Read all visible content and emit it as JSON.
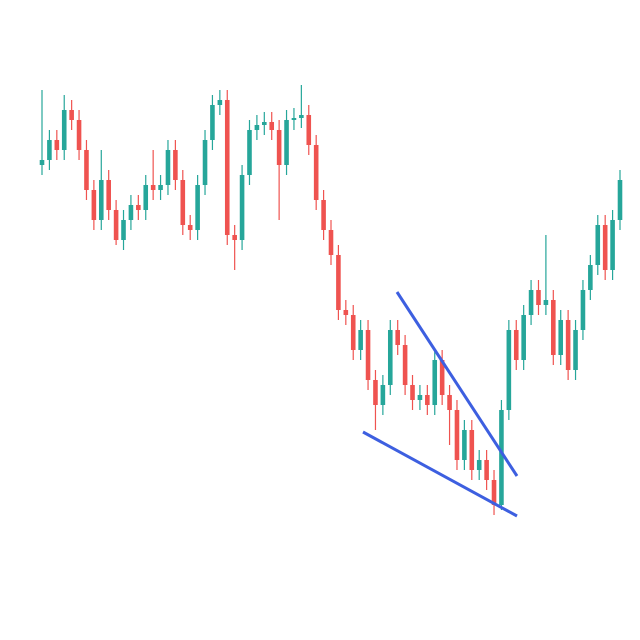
{
  "chart_data": {
    "type": "candlestick",
    "up_color": "#26a69a",
    "down_color": "#ef5350",
    "ylim": [
      0,
      640
    ],
    "open": [
      475,
      480,
      500,
      490,
      530,
      520,
      490,
      450,
      420,
      460,
      430,
      400,
      420,
      435,
      430,
      455,
      450,
      455,
      490,
      460,
      415,
      410,
      455,
      500,
      535,
      540,
      405,
      400,
      465,
      510,
      515,
      518,
      510,
      475,
      520,
      522,
      525,
      495,
      440,
      410,
      385,
      330,
      325,
      290,
      310,
      260,
      235,
      255,
      310,
      295,
      255,
      240,
      245,
      235,
      280,
      245,
      230,
      180,
      210,
      170,
      180,
      160,
      135,
      230,
      310,
      280,
      325,
      350,
      335,
      340,
      285,
      320,
      270,
      310,
      350,
      375,
      415,
      370,
      420
    ],
    "high": [
      550,
      510,
      510,
      545,
      540,
      530,
      500,
      460,
      490,
      470,
      440,
      430,
      445,
      445,
      465,
      490,
      465,
      500,
      500,
      470,
      425,
      465,
      510,
      545,
      550,
      550,
      415,
      475,
      520,
      525,
      528,
      528,
      520,
      530,
      532,
      555,
      535,
      505,
      450,
      420,
      395,
      340,
      335,
      320,
      320,
      270,
      265,
      320,
      320,
      305,
      265,
      255,
      255,
      290,
      290,
      255,
      240,
      220,
      220,
      190,
      190,
      170,
      240,
      320,
      320,
      335,
      360,
      360,
      405,
      350,
      330,
      330,
      320,
      360,
      385,
      425,
      425,
      430,
      470
    ],
    "low": [
      465,
      470,
      480,
      480,
      510,
      480,
      440,
      410,
      410,
      420,
      395,
      390,
      410,
      420,
      420,
      440,
      440,
      445,
      450,
      405,
      400,
      400,
      445,
      490,
      525,
      395,
      370,
      390,
      455,
      500,
      505,
      500,
      420,
      465,
      510,
      512,
      485,
      430,
      400,
      375,
      320,
      315,
      280,
      280,
      250,
      210,
      225,
      245,
      285,
      245,
      230,
      230,
      225,
      225,
      235,
      195,
      170,
      170,
      160,
      160,
      150,
      125,
      130,
      220,
      270,
      270,
      315,
      325,
      325,
      275,
      275,
      260,
      260,
      300,
      340,
      365,
      360,
      360,
      410
    ],
    "close": [
      480,
      500,
      490,
      530,
      520,
      490,
      450,
      420,
      460,
      430,
      400,
      420,
      435,
      430,
      455,
      450,
      455,
      490,
      460,
      415,
      410,
      455,
      500,
      535,
      540,
      405,
      400,
      465,
      510,
      515,
      518,
      510,
      475,
      520,
      522,
      525,
      495,
      440,
      410,
      385,
      330,
      325,
      290,
      310,
      260,
      235,
      255,
      310,
      295,
      255,
      240,
      245,
      235,
      280,
      245,
      230,
      180,
      210,
      170,
      180,
      160,
      135,
      230,
      310,
      280,
      325,
      350,
      335,
      340,
      285,
      320,
      270,
      310,
      350,
      375,
      415,
      370,
      420,
      460
    ]
  }
}
